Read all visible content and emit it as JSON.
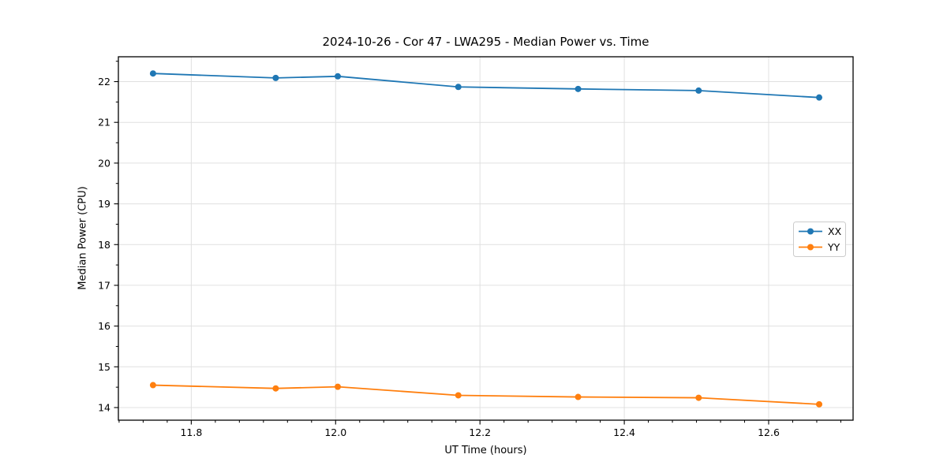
{
  "chart_data": {
    "type": "line",
    "title": "2024-10-26 - Cor 47 - LWA295 - Median Power vs. Time",
    "xlabel": "UT Time (hours)",
    "ylabel": "Median Power (CPU)",
    "xlim": [
      11.699,
      12.717
    ],
    "ylim": [
      13.69,
      22.61
    ],
    "x_major_ticks": [
      11.8,
      12.0,
      12.2,
      12.4,
      12.6
    ],
    "x_major_tick_labels": [
      "11.8",
      "12.0",
      "12.2",
      "12.4",
      "12.6"
    ],
    "x_minor_divisions_per_major": 6,
    "x_major_step": 0.2,
    "y_major_ticks": [
      14,
      15,
      16,
      17,
      18,
      19,
      20,
      21,
      22
    ],
    "y_major_tick_labels": [
      "14",
      "15",
      "16",
      "17",
      "18",
      "19",
      "20",
      "21",
      "22"
    ],
    "y_minor_step": 0.5,
    "grid": true,
    "legend_position": "center right",
    "x": [
      11.747,
      11.917,
      12.003,
      12.17,
      12.336,
      12.503,
      12.67
    ],
    "series": [
      {
        "name": "XX",
        "color": "#1f77b4",
        "values": [
          22.2,
          22.09,
          22.13,
          21.87,
          21.82,
          21.78,
          21.61
        ]
      },
      {
        "name": "YY",
        "color": "#ff7f0e",
        "values": [
          14.55,
          14.47,
          14.51,
          14.3,
          14.26,
          14.24,
          14.08
        ]
      }
    ]
  },
  "style_colors": {
    "grid": "#e0e0e0",
    "spine": "#000000",
    "legend_border": "#cccccc",
    "legend_background": "#ffffff"
  }
}
